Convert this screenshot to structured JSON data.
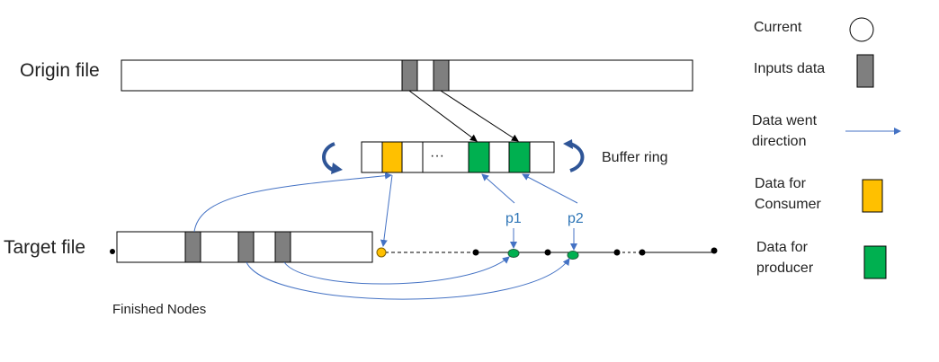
{
  "labels": {
    "origin_file": "Origin file",
    "target_file": "Target file",
    "buffer_ring": "Buffer ring",
    "finished_nodes": "Finished Nodes",
    "ellipsis": "···",
    "p1": "p1",
    "p2": "p2"
  },
  "legend": {
    "current": "Current",
    "inputs_data": "Inputs data",
    "direction_line1": "Data went",
    "direction_line2": "direction",
    "consumer_line1": "Data  for",
    "consumer_line2": "Consumer",
    "producer_line1": "Data  for",
    "producer_line2": "producer"
  },
  "colors": {
    "gray_block": "#7f7f7f",
    "consumer": "#ffc000",
    "producer": "#00b050",
    "arrow_blue": "#4472c4",
    "ring_arrow": "#2f5597"
  },
  "icons": {
    "rotate_left": "rotate-left-icon",
    "rotate_right": "rotate-right-icon"
  }
}
